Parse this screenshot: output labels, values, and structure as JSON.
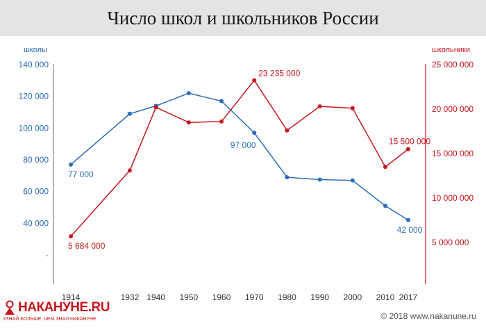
{
  "header": {
    "title": "Число школ и школьников России"
  },
  "footer": {
    "copyright": "© 2018 www.nakanune.ru",
    "logo_name": "НАКАНУНЕ.RU",
    "logo_tagline": "УЗНАЙ БОЛЬШЕ, ЧЕМ ЗНАЛ НАКАНУНЕ"
  },
  "colors": {
    "schools": "#2a6cb8",
    "students": "#c8161d",
    "axis": "#666666",
    "title_bg": "#e4e4e4"
  },
  "chart_data": {
    "type": "line",
    "x": [
      1914,
      1932,
      1940,
      1950,
      1960,
      1970,
      1980,
      1990,
      2000,
      2010,
      2017
    ],
    "x_ticks": [
      "1914",
      "1932",
      "1940",
      "1950",
      "1960",
      "1970",
      "1980",
      "1990",
      "2000",
      "2010",
      "2017"
    ],
    "ylabel_left": "школы",
    "ylabel_right": "школьники",
    "ylim_left": [
      20000,
      140000
    ],
    "ylim_right": [
      0,
      25000000
    ],
    "yticks_left": [
      "140 000",
      "120 000",
      "100 000",
      "80 000",
      "60 000",
      "40 000",
      "-"
    ],
    "yticks_left_values": [
      140000,
      120000,
      100000,
      80000,
      60000,
      40000,
      20000
    ],
    "yticks_right": [
      "25 000 000",
      "20 000 000",
      "15 000 000",
      "10 000 000",
      "5 000 000"
    ],
    "yticks_right_values": [
      25000000,
      20000000,
      15000000,
      10000000,
      5000000
    ],
    "series": [
      {
        "axis": "left",
        "values": [
          77000,
          109000,
          114000,
          122000,
          117000,
          97000,
          69000,
          67500,
          67000,
          51000,
          42000
        ],
        "labels": [
          {
            "index": 0,
            "text": "77 000"
          },
          {
            "index": 5,
            "text": "97 000"
          },
          {
            "index": 10,
            "text": "42 000"
          }
        ]
      },
      {
        "axis": "right",
        "values": [
          5684000,
          13100000,
          20200000,
          18500000,
          18600000,
          23235000,
          17600000,
          20300000,
          20100000,
          13500000,
          15500000
        ],
        "labels": [
          {
            "index": 0,
            "text": "5 684 000"
          },
          {
            "index": 5,
            "text": "23 235 000"
          },
          {
            "index": 10,
            "text": "15 500 000"
          }
        ]
      }
    ],
    "grid": false
  }
}
